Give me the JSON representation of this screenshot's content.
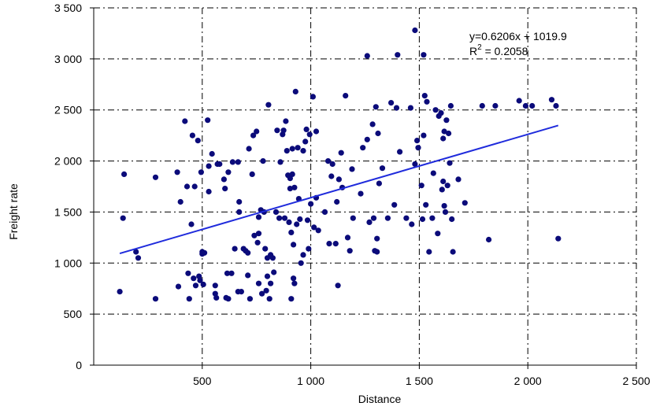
{
  "chart_data": {
    "type": "scatter",
    "xlabel": "Distance",
    "ylabel": "Freight rate",
    "xlim": [
      0,
      2500
    ],
    "ylim": [
      0,
      3500
    ],
    "xticks": [
      500,
      1000,
      1500,
      2000,
      2500
    ],
    "xtick_labels": [
      "500",
      "1 000",
      "1 500",
      "2 000",
      "2 500"
    ],
    "yticks": [
      0,
      500,
      1000,
      1500,
      2000,
      2500,
      3000,
      3500
    ],
    "ytick_labels": [
      "0",
      "500",
      "1 000",
      "1 500",
      "2 000",
      "2 500",
      "3 000",
      "3 500"
    ],
    "grid": true,
    "colors": {
      "points": "#0b0b7a",
      "trendline": "#1f2bdc"
    },
    "trendline": {
      "slope": 0.6206,
      "intercept": 1019.9,
      "x_range": [
        120,
        2140
      ],
      "equation": "y=0.6206x + 1019.9",
      "r2_prefix": "R",
      "r2_sup": "2",
      "r2_value": " = 0.2058"
    },
    "points": [
      [
        120,
        720
      ],
      [
        135,
        1440
      ],
      [
        140,
        1870
      ],
      [
        195,
        1110
      ],
      [
        205,
        1050
      ],
      [
        285,
        650
      ],
      [
        285,
        1840
      ],
      [
        385,
        1890
      ],
      [
        390,
        770
      ],
      [
        400,
        1600
      ],
      [
        420,
        2390
      ],
      [
        430,
        1750
      ],
      [
        435,
        900
      ],
      [
        440,
        650
      ],
      [
        450,
        1380
      ],
      [
        455,
        2250
      ],
      [
        460,
        850
      ],
      [
        465,
        1750
      ],
      [
        470,
        780
      ],
      [
        480,
        2200
      ],
      [
        485,
        870
      ],
      [
        490,
        830
      ],
      [
        495,
        1890
      ],
      [
        500,
        1110
      ],
      [
        500,
        1090
      ],
      [
        505,
        790
      ],
      [
        510,
        1100
      ],
      [
        525,
        2400
      ],
      [
        530,
        1950
      ],
      [
        530,
        1700
      ],
      [
        545,
        2070
      ],
      [
        560,
        780
      ],
      [
        560,
        700
      ],
      [
        565,
        660
      ],
      [
        570,
        1970
      ],
      [
        580,
        1970
      ],
      [
        600,
        1820
      ],
      [
        605,
        1730
      ],
      [
        610,
        660
      ],
      [
        615,
        900
      ],
      [
        620,
        1890
      ],
      [
        620,
        650
      ],
      [
        635,
        900
      ],
      [
        640,
        1990
      ],
      [
        650,
        1140
      ],
      [
        665,
        720
      ],
      [
        665,
        1990
      ],
      [
        670,
        1600
      ],
      [
        670,
        1500
      ],
      [
        680,
        720
      ],
      [
        690,
        1140
      ],
      [
        700,
        1120
      ],
      [
        710,
        880
      ],
      [
        710,
        1100
      ],
      [
        715,
        2120
      ],
      [
        720,
        650
      ],
      [
        730,
        1870
      ],
      [
        735,
        2250
      ],
      [
        740,
        1270
      ],
      [
        750,
        2290
      ],
      [
        755,
        1200
      ],
      [
        760,
        1290
      ],
      [
        760,
        1450
      ],
      [
        760,
        800
      ],
      [
        770,
        1520
      ],
      [
        775,
        700
      ],
      [
        780,
        2000
      ],
      [
        785,
        1500
      ],
      [
        790,
        1140
      ],
      [
        795,
        730
      ],
      [
        800,
        1050
      ],
      [
        800,
        870
      ],
      [
        805,
        2550
      ],
      [
        810,
        650
      ],
      [
        815,
        1080
      ],
      [
        815,
        800
      ],
      [
        825,
        1050
      ],
      [
        830,
        910
      ],
      [
        840,
        1500
      ],
      [
        845,
        2300
      ],
      [
        855,
        1440
      ],
      [
        860,
        1990
      ],
      [
        870,
        2260
      ],
      [
        875,
        2300
      ],
      [
        880,
        1440
      ],
      [
        885,
        2390
      ],
      [
        890,
        2100
      ],
      [
        895,
        1860
      ],
      [
        900,
        1400
      ],
      [
        905,
        1730
      ],
      [
        905,
        1830
      ],
      [
        910,
        650
      ],
      [
        910,
        1300
      ],
      [
        915,
        2120
      ],
      [
        915,
        1870
      ],
      [
        920,
        1180
      ],
      [
        920,
        850
      ],
      [
        925,
        1740
      ],
      [
        925,
        800
      ],
      [
        930,
        2680
      ],
      [
        935,
        1380
      ],
      [
        940,
        2130
      ],
      [
        945,
        1630
      ],
      [
        950,
        1430
      ],
      [
        955,
        1000
      ],
      [
        965,
        1080
      ],
      [
        965,
        2100
      ],
      [
        975,
        2190
      ],
      [
        980,
        2310
      ],
      [
        985,
        1420
      ],
      [
        990,
        1140
      ],
      [
        995,
        2260
      ],
      [
        1000,
        1580
      ],
      [
        1010,
        2630
      ],
      [
        1015,
        1350
      ],
      [
        1025,
        1640
      ],
      [
        1025,
        2290
      ],
      [
        1035,
        1320
      ],
      [
        1065,
        1500
      ],
      [
        1080,
        2000
      ],
      [
        1085,
        1190
      ],
      [
        1095,
        1850
      ],
      [
        1100,
        1970
      ],
      [
        1115,
        1190
      ],
      [
        1120,
        1600
      ],
      [
        1125,
        780
      ],
      [
        1130,
        1820
      ],
      [
        1140,
        2080
      ],
      [
        1145,
        1740
      ],
      [
        1160,
        2640
      ],
      [
        1170,
        1250
      ],
      [
        1180,
        1120
      ],
      [
        1190,
        1920
      ],
      [
        1195,
        1440
      ],
      [
        1230,
        1680
      ],
      [
        1240,
        2130
      ],
      [
        1260,
        3030
      ],
      [
        1260,
        2210
      ],
      [
        1270,
        1400
      ],
      [
        1285,
        2360
      ],
      [
        1290,
        1440
      ],
      [
        1295,
        1120
      ],
      [
        1300,
        2530
      ],
      [
        1305,
        1110
      ],
      [
        1305,
        1240
      ],
      [
        1310,
        2270
      ],
      [
        1315,
        1780
      ],
      [
        1330,
        1930
      ],
      [
        1355,
        1440
      ],
      [
        1370,
        2570
      ],
      [
        1385,
        1570
      ],
      [
        1395,
        2520
      ],
      [
        1400,
        3040
      ],
      [
        1410,
        2090
      ],
      [
        1440,
        1440
      ],
      [
        1460,
        2520
      ],
      [
        1465,
        1380
      ],
      [
        1480,
        1970
      ],
      [
        1480,
        3280
      ],
      [
        1490,
        2200
      ],
      [
        1495,
        2130
      ],
      [
        1510,
        1760
      ],
      [
        1515,
        1430
      ],
      [
        1520,
        3040
      ],
      [
        1520,
        2250
      ],
      [
        1525,
        2640
      ],
      [
        1530,
        1570
      ],
      [
        1535,
        2580
      ],
      [
        1545,
        1110
      ],
      [
        1560,
        1440
      ],
      [
        1565,
        1880
      ],
      [
        1575,
        2500
      ],
      [
        1585,
        1290
      ],
      [
        1590,
        2440
      ],
      [
        1600,
        2470
      ],
      [
        1605,
        1720
      ],
      [
        1610,
        1800
      ],
      [
        1610,
        2220
      ],
      [
        1615,
        2290
      ],
      [
        1615,
        1560
      ],
      [
        1620,
        1500
      ],
      [
        1625,
        2400
      ],
      [
        1630,
        1760
      ],
      [
        1635,
        2270
      ],
      [
        1640,
        1980
      ],
      [
        1645,
        2540
      ],
      [
        1650,
        1430
      ],
      [
        1655,
        1110
      ],
      [
        1680,
        1820
      ],
      [
        1710,
        1590
      ],
      [
        1790,
        2540
      ],
      [
        1820,
        1230
      ],
      [
        1850,
        2540
      ],
      [
        1960,
        2590
      ],
      [
        1990,
        2540
      ],
      [
        2020,
        2540
      ],
      [
        2110,
        2600
      ],
      [
        2130,
        2540
      ],
      [
        2140,
        1240
      ]
    ]
  }
}
